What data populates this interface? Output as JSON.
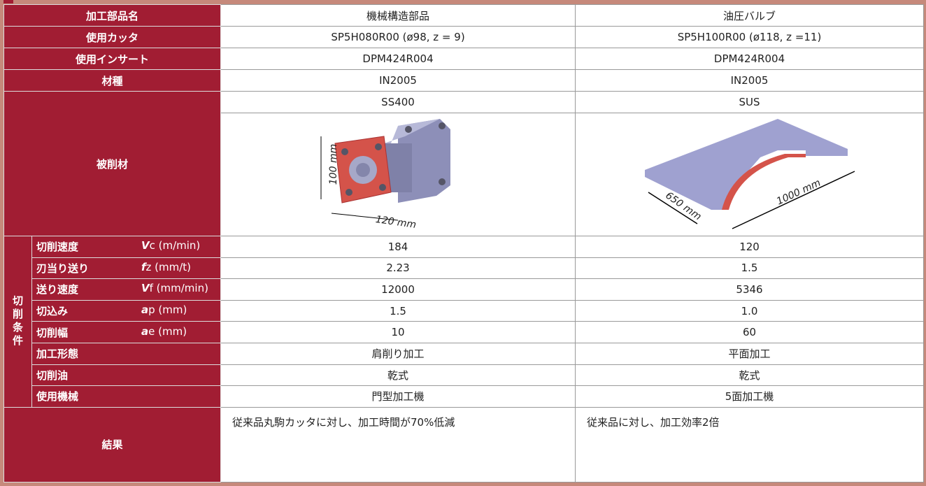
{
  "table": {
    "rows": [
      {
        "label": "加工部品名",
        "values": [
          "機械構造部品",
          "油圧バルブ"
        ]
      },
      {
        "label": "使用カッタ",
        "values": [
          "SP5H080R00 (ø98, z = 9)",
          "SP5H100R00 (ø118, z =11)"
        ]
      },
      {
        "label": "使用インサート",
        "values": [
          "DPM424R004",
          "DPM424R004"
        ]
      },
      {
        "label": "材種",
        "values": [
          "IN2005",
          "IN2005"
        ]
      }
    ],
    "workpiece": {
      "label": "被削材",
      "values": [
        "SS400",
        "SUS"
      ],
      "dims": [
        [
          "100 mm",
          "120 mm"
        ],
        [
          "650 mm",
          "1000 mm"
        ]
      ]
    },
    "conditions": {
      "group_label": "切削条件",
      "rows": [
        {
          "label": "切削速度",
          "symbol": "V",
          "param": "c (m/min)",
          "values": [
            "184",
            "120"
          ]
        },
        {
          "label": "刃当り送り",
          "symbol": "f",
          "param": "z (mm/t)",
          "values": [
            "2.23",
            "1.5"
          ]
        },
        {
          "label": "送り速度",
          "symbol": "V",
          "param": "f (mm/min)",
          "values": [
            "12000",
            "5346"
          ]
        },
        {
          "label": "切込み",
          "symbol": "a",
          "param": "p (mm)",
          "values": [
            "1.5",
            "1.0"
          ]
        },
        {
          "label": "切削幅",
          "symbol": "a",
          "param": "e (mm)",
          "values": [
            "10",
            "60"
          ]
        },
        {
          "label": "加工形態",
          "values": [
            "肩削り加工",
            "平面加工"
          ]
        },
        {
          "label": "切削油",
          "values": [
            "乾式",
            "乾式"
          ]
        },
        {
          "label": "使用機械",
          "values": [
            "門型加工機",
            "5面加工機"
          ]
        }
      ]
    },
    "result": {
      "label": "結果",
      "values": [
        "従来品丸駒カッタに対し、加工時間が70%低減",
        "従来品に対し、加工効率2倍"
      ]
    }
  }
}
